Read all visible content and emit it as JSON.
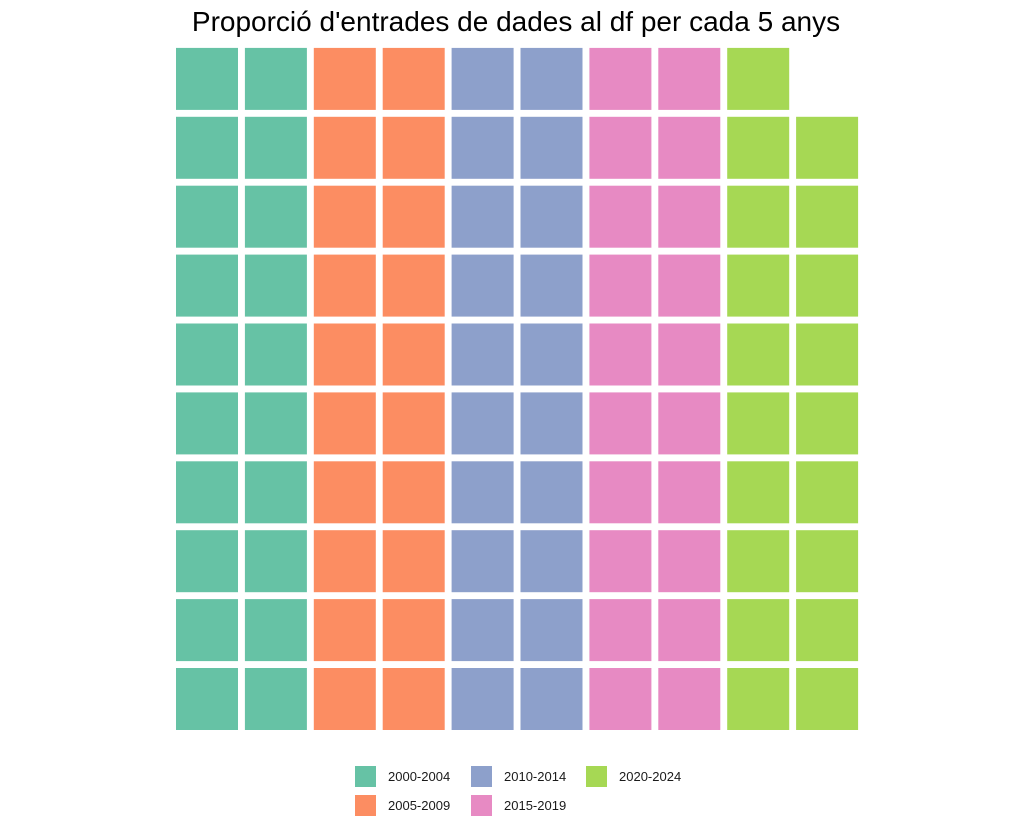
{
  "chart_data": {
    "type": "waffle",
    "title": "Proporció d'entrades de dades al df per cada 5 anys",
    "categories": [
      "2000-2004",
      "2005-2009",
      "2010-2014",
      "2015-2019",
      "2020-2024"
    ],
    "values": [
      20,
      20,
      20,
      20,
      19
    ],
    "colors": [
      "#66c2a5",
      "#fc8d62",
      "#8da0cb",
      "#e78ac3",
      "#a6d854"
    ],
    "grid": {
      "rows": 10,
      "columns": 10
    },
    "legend_position": "bottom"
  }
}
